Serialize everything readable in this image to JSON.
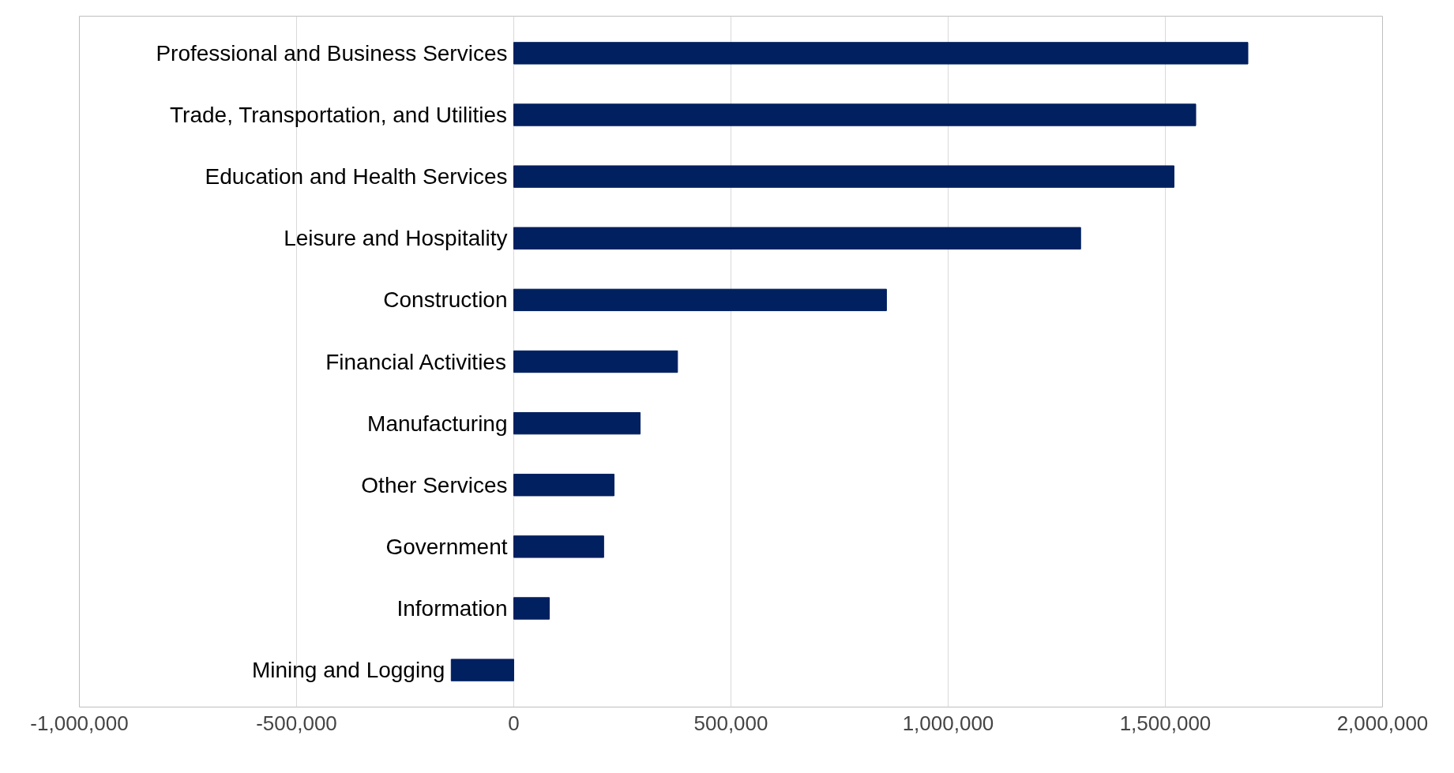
{
  "chart_data": {
    "type": "bar",
    "orientation": "horizontal",
    "categories": [
      "Professional and Business Services",
      "Trade, Transportation, and Utilities",
      "Education and Health Services",
      "Leisure and Hospitality",
      "Construction",
      "Financial Activities",
      "Manufacturing",
      "Other Services",
      "Government",
      "Information",
      "Mining and Logging"
    ],
    "values": [
      1690000,
      1570000,
      1520000,
      1305000,
      858000,
      377000,
      291000,
      231000,
      207000,
      82000,
      -144000
    ],
    "color": "#002060",
    "xlim": [
      -1000000,
      2000000
    ],
    "xticks": [
      {
        "value": -1000000,
        "label": "-1,000,000"
      },
      {
        "value": -500000,
        "label": "-500,000"
      },
      0,
      {
        "value": 500000,
        "label": "500,000"
      },
      {
        "value": 1000000,
        "label": "1,000,000"
      },
      {
        "value": 1500000,
        "label": "1,500,000"
      },
      {
        "value": 2000000,
        "label": "2,000,000"
      }
    ],
    "grid": "x"
  }
}
